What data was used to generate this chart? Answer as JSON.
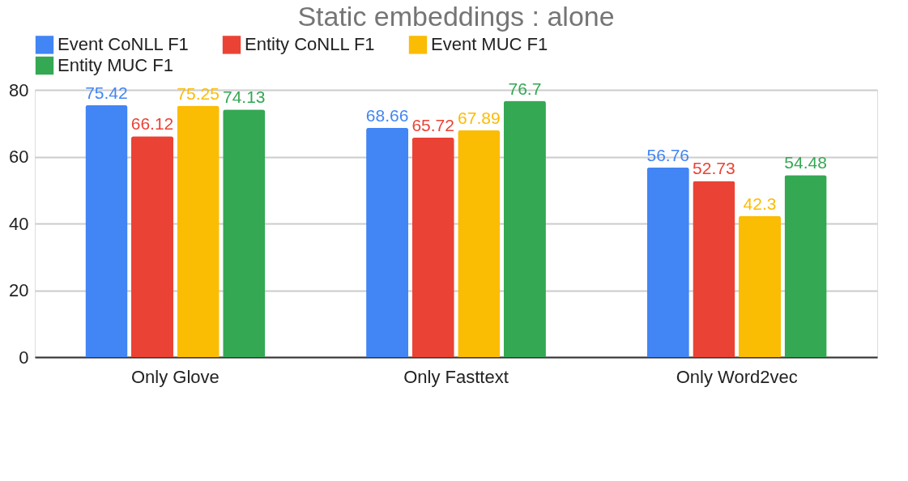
{
  "chart_data": {
    "type": "bar",
    "title": "Static embeddings : alone",
    "categories": [
      "Only Glove",
      "Only Fasttext",
      "Only Word2vec"
    ],
    "series": [
      {
        "name": "Event CoNLL F1",
        "color": "#4285f4",
        "values": [
          75.42,
          68.66,
          56.76
        ]
      },
      {
        "name": "Entity CoNLL F1",
        "color": "#ea4335",
        "values": [
          66.12,
          65.72,
          52.73
        ]
      },
      {
        "name": "Event MUC F1",
        "color": "#fbbc04",
        "values": [
          75.25,
          67.89,
          42.3
        ]
      },
      {
        "name": "Entity MUC F1",
        "color": "#34a853",
        "values": [
          74.13,
          76.7,
          54.48
        ]
      }
    ],
    "ylim": [
      0,
      80
    ],
    "yticks": [
      0,
      20,
      40,
      60,
      80
    ],
    "grid": "y",
    "legend": "top",
    "data_labels": true
  }
}
